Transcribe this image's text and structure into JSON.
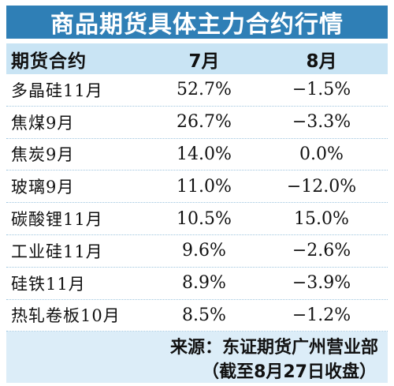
{
  "title": "商品期货具体主力合约行情",
  "header": {
    "contract": "期货合约",
    "jul": "7月",
    "aug": "8月"
  },
  "rows": [
    {
      "name": "多晶硅11月",
      "jul": "52.7%",
      "aug": "−1.5%"
    },
    {
      "name": "焦煤9月",
      "jul": "26.7%",
      "aug": "−3.3%"
    },
    {
      "name": "焦炭9月",
      "jul": "14.0%",
      "aug": "0.0%"
    },
    {
      "name": "玻璃9月",
      "jul": "11.0%",
      "aug": "−12.0%"
    },
    {
      "name": "碳酸锂11月",
      "jul": "10.5%",
      "aug": "15.0%"
    },
    {
      "name": "工业硅11月",
      "jul": "9.6%",
      "aug": "−2.6%"
    },
    {
      "name": "硅铁11月",
      "jul": "8.9%",
      "aug": "−3.9%"
    },
    {
      "name": "热轧卷板10月",
      "jul": "8.5%",
      "aug": "−1.2%"
    }
  ],
  "footer": {
    "source": "来源：东证期货广州营业部",
    "note": "（截至8月27日收盘）"
  },
  "colors": {
    "title_bg": "#2f7fb6",
    "header_bg": "#c9e4f4",
    "footer_bg": "#dcedf8"
  }
}
